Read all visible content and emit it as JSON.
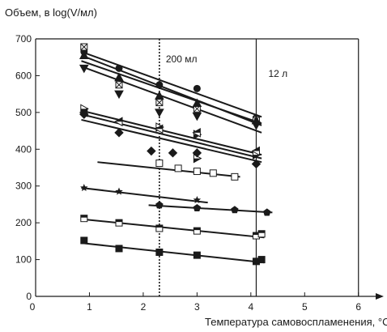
{
  "chart_data": {
    "type": "scatter",
    "title": "",
    "ylabel": "Объем, в log(V/мл)",
    "xlabel": "Температура самовоспламенения, °С",
    "xlim": [
      0,
      6.35
    ],
    "ylim": [
      0,
      700
    ],
    "x_ticks": [
      0,
      1,
      2,
      3,
      4,
      5,
      6
    ],
    "x_tick_labels": [
      "0",
      "1",
      "2",
      "3",
      "4",
      "5",
      "6"
    ],
    "y_ticks": [
      0,
      100,
      200,
      300,
      400,
      500,
      600,
      700
    ],
    "y_tick_labels": [
      "0",
      "100",
      "200",
      "300",
      "400",
      "500",
      "600",
      "700"
    ],
    "grid": false,
    "reference_lines": [
      {
        "x": 2.3,
        "style": "dotted",
        "label": "200 мл"
      },
      {
        "x": 4.1,
        "style": "solid",
        "label": "12 л"
      }
    ],
    "series": [
      {
        "marker": "circle",
        "points": [
          [
            0.9,
            665
          ],
          [
            1.55,
            620
          ],
          [
            2.3,
            575
          ],
          [
            3.0,
            565
          ],
          [
            4.1,
            485
          ]
        ],
        "fit": [
          [
            0.85,
            665
          ],
          [
            4.2,
            488
          ]
        ]
      },
      {
        "marker": "boxed-x",
        "points": [
          [
            0.9,
            678
          ],
          [
            1.55,
            575
          ],
          [
            2.3,
            527
          ],
          [
            3.0,
            510
          ],
          [
            4.1,
            480
          ]
        ],
        "fit": [
          [
            0.85,
            655
          ],
          [
            4.2,
            465
          ]
        ]
      },
      {
        "marker": "triangle-up",
        "points": [
          [
            0.9,
            655
          ],
          [
            1.55,
            595
          ],
          [
            2.3,
            545
          ],
          [
            3.0,
            525
          ],
          [
            4.1,
            478
          ]
        ],
        "fit": [
          [
            0.85,
            640
          ],
          [
            4.2,
            470
          ]
        ]
      },
      {
        "marker": "triangle-down",
        "points": [
          [
            0.9,
            620
          ],
          [
            1.55,
            550
          ],
          [
            2.3,
            500
          ],
          [
            3.0,
            490
          ],
          [
            4.1,
            465
          ]
        ],
        "fit": [
          [
            0.85,
            625
          ],
          [
            4.2,
            445
          ]
        ]
      },
      {
        "marker": "half-right-triangle",
        "points": [
          [
            0.9,
            510
          ],
          [
            2.3,
            460
          ],
          [
            3.0,
            440
          ],
          [
            4.1,
            385
          ],
          [
            3.0,
            375
          ]
        ],
        "fit": [
          [
            0.85,
            505
          ],
          [
            4.2,
            385
          ]
        ]
      },
      {
        "marker": "left-triangle",
        "points": [
          [
            0.9,
            500
          ],
          [
            1.55,
            475
          ],
          [
            2.3,
            455
          ],
          [
            3.0,
            445
          ],
          [
            4.1,
            395
          ]
        ],
        "fit": [
          [
            0.85,
            495
          ],
          [
            4.2,
            375
          ]
        ]
      },
      {
        "marker": "diamond",
        "points": [
          [
            0.9,
            495
          ],
          [
            1.55,
            445
          ],
          [
            2.15,
            395
          ],
          [
            2.55,
            390
          ],
          [
            3.0,
            390
          ],
          [
            4.1,
            360
          ]
        ],
        "fit": [
          [
            0.85,
            480
          ],
          [
            4.2,
            365
          ]
        ]
      },
      {
        "marker": "square-open",
        "points": [
          [
            2.3,
            362
          ],
          [
            2.65,
            348
          ],
          [
            3.0,
            340
          ],
          [
            3.3,
            335
          ],
          [
            3.7,
            325
          ]
        ],
        "fit": [
          [
            1.15,
            365
          ],
          [
            3.8,
            325
          ]
        ]
      },
      {
        "marker": "star",
        "points": [
          [
            0.9,
            295
          ],
          [
            1.55,
            285
          ],
          [
            3.0,
            262
          ]
        ],
        "fit": [
          [
            0.85,
            295
          ],
          [
            3.2,
            255
          ]
        ]
      },
      {
        "marker": "pentagon",
        "points": [
          [
            2.3,
            248
          ],
          [
            3.0,
            240
          ],
          [
            3.7,
            235
          ],
          [
            4.3,
            228
          ]
        ],
        "fit": [
          [
            2.1,
            248
          ],
          [
            4.4,
            228
          ]
        ]
      },
      {
        "marker": "square-half",
        "points": [
          [
            0.9,
            212
          ],
          [
            1.55,
            200
          ],
          [
            2.3,
            185
          ],
          [
            3.0,
            178
          ],
          [
            4.1,
            165
          ],
          [
            4.2,
            170
          ]
        ],
        "fit": [
          [
            0.85,
            210
          ],
          [
            4.25,
            160
          ]
        ]
      },
      {
        "marker": "square-filled",
        "points": [
          [
            0.9,
            152
          ],
          [
            1.55,
            130
          ],
          [
            2.3,
            120
          ],
          [
            3.0,
            112
          ],
          [
            4.1,
            95
          ],
          [
            4.2,
            100
          ]
        ],
        "fit": [
          [
            0.85,
            145
          ],
          [
            4.25,
            92
          ]
        ]
      }
    ]
  }
}
